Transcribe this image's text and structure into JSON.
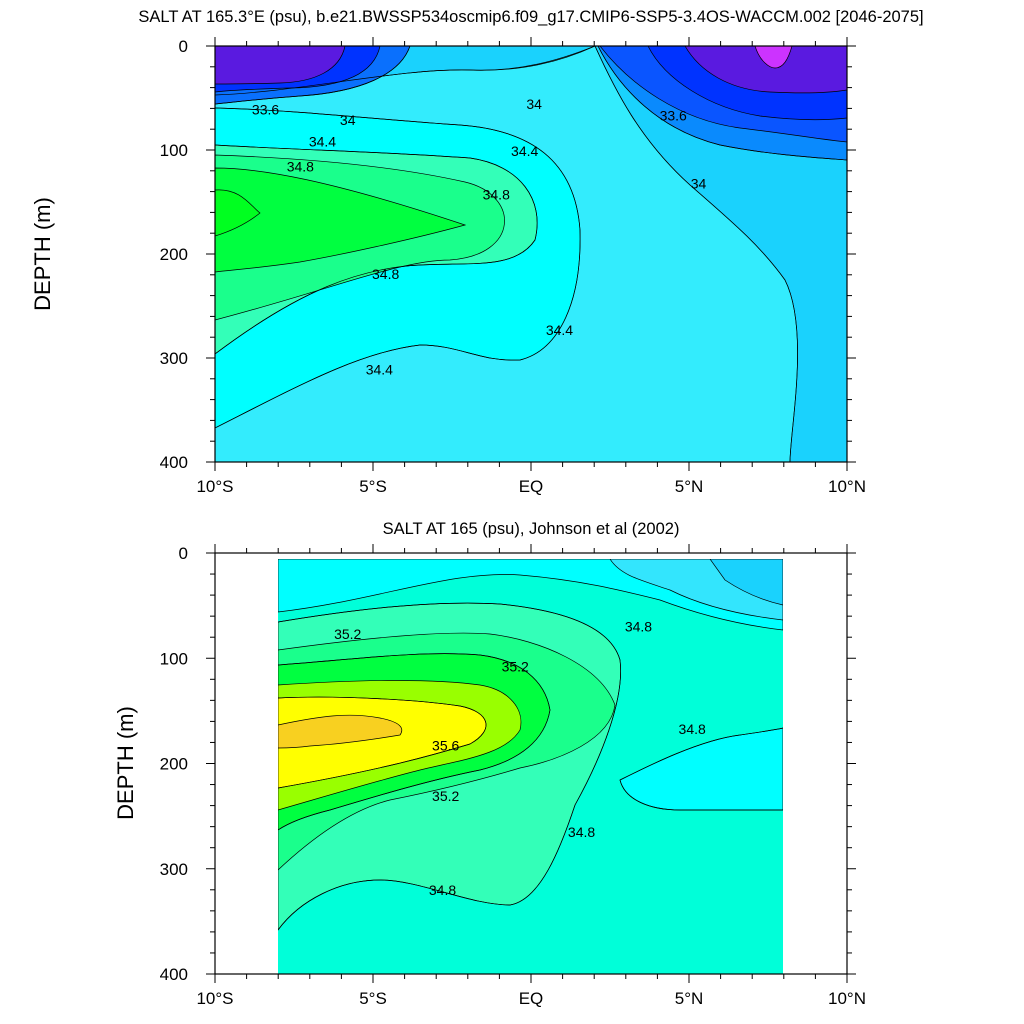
{
  "chart_data": [
    {
      "type": "contour",
      "title": "SALT AT 165.3°E (psu), b.e21.BWSSP534oscmip6.f09_g17.CMIP6-SSP5-3.4OS-WACCM.002 [2046-2075]",
      "ylabel": "DEPTH (m)",
      "xlabel": "",
      "xlim": [
        -10,
        10
      ],
      "ylim": [
        400,
        0
      ],
      "x_ticks": [
        {
          "value": -10,
          "label": "10°S"
        },
        {
          "value": -5,
          "label": "5°S"
        },
        {
          "value": 0,
          "label": "EQ"
        },
        {
          "value": 5,
          "label": "5°N"
        },
        {
          "value": 10,
          "label": "10°N"
        }
      ],
      "y_ticks": [
        {
          "value": 0,
          "label": "0"
        },
        {
          "value": 100,
          "label": "100"
        },
        {
          "value": 200,
          "label": "200"
        },
        {
          "value": 300,
          "label": "300"
        },
        {
          "value": 400,
          "label": "400"
        }
      ],
      "contour_labels": [
        {
          "text": "33.6",
          "x": -8.4,
          "y": 61
        },
        {
          "text": "34",
          "x": -5.8,
          "y": 71
        },
        {
          "text": "34.4",
          "x": -6.6,
          "y": 92
        },
        {
          "text": "34.8",
          "x": -7.3,
          "y": 116
        },
        {
          "text": "34",
          "x": 0.1,
          "y": 56
        },
        {
          "text": "34.4",
          "x": -0.2,
          "y": 101
        },
        {
          "text": "34.8",
          "x": -1.1,
          "y": 143
        },
        {
          "text": "34.8",
          "x": -4.6,
          "y": 219
        },
        {
          "text": "34.4",
          "x": 0.9,
          "y": 273
        },
        {
          "text": "34.4",
          "x": -4.8,
          "y": 311
        },
        {
          "text": "33.6",
          "x": 4.5,
          "y": 67
        },
        {
          "text": "34",
          "x": 5.3,
          "y": 132
        }
      ]
    },
    {
      "type": "contour",
      "title": "SALT AT 165 (psu), Johnson et al (2002)",
      "ylabel": "DEPTH (m)",
      "xlabel": "",
      "xlim": [
        -10,
        10
      ],
      "ylim": [
        400,
        0
      ],
      "x_ticks": [
        {
          "value": -10,
          "label": "10°S"
        },
        {
          "value": -5,
          "label": "5°S"
        },
        {
          "value": 0,
          "label": "EQ"
        },
        {
          "value": 5,
          "label": "5°N"
        },
        {
          "value": 10,
          "label": "10°N"
        }
      ],
      "y_ticks": [
        {
          "value": 0,
          "label": "0"
        },
        {
          "value": 100,
          "label": "100"
        },
        {
          "value": 200,
          "label": "200"
        },
        {
          "value": 300,
          "label": "300"
        },
        {
          "value": 400,
          "label": "400"
        }
      ],
      "data_extent_x": [
        -8,
        8
      ],
      "contour_labels": [
        {
          "text": "35.2",
          "x": -5.8,
          "y": 77
        },
        {
          "text": "35.2",
          "x": -0.5,
          "y": 108
        },
        {
          "text": "34.8",
          "x": 3.4,
          "y": 70
        },
        {
          "text": "35.6",
          "x": -2.7,
          "y": 183
        },
        {
          "text": "35.2",
          "x": -2.7,
          "y": 231
        },
        {
          "text": "34.8",
          "x": 1.6,
          "y": 265
        },
        {
          "text": "34.8",
          "x": -2.8,
          "y": 320
        },
        {
          "text": "34.8",
          "x": 5.1,
          "y": 167
        }
      ]
    }
  ]
}
